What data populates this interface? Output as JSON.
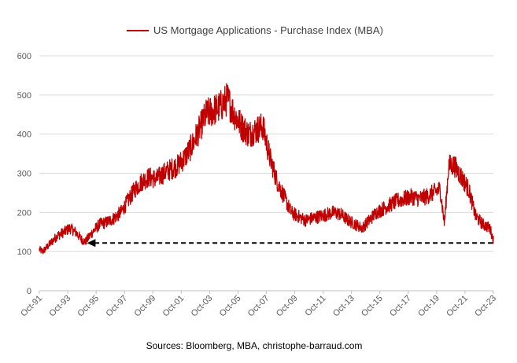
{
  "chart_data": {
    "type": "line",
    "title": "",
    "legend": {
      "label": "US Mortgage Applications - Purchase Index (MBA)",
      "placement": "top"
    },
    "xlabel": "",
    "ylabel": "",
    "ylim": [
      0,
      600
    ],
    "yticks": [
      0,
      100,
      200,
      300,
      400,
      500,
      600
    ],
    "xlim": [
      1991.75,
      2023.75
    ],
    "xtick_labels": [
      "Oct-91",
      "Oct-93",
      "Oct-95",
      "Oct-97",
      "Oct-99",
      "Oct-01",
      "Oct-03",
      "Oct-05",
      "Oct-07",
      "Oct-09",
      "Oct-11",
      "Oct-13",
      "Oct-15",
      "Oct-17",
      "Oct-19",
      "Oct-21",
      "Oct-23"
    ],
    "grid": "horizontal",
    "source": "Sources: Bloomberg, MBA, christophe-barraud.com",
    "colors": {
      "series": "#c00000",
      "grid": "#d9d9d9",
      "axis": "#bfbfbf",
      "arrow": "#000000"
    },
    "annotation": {
      "type": "dashed-arrow",
      "from_x": 2023.7,
      "to_x": 1995.1,
      "y": 122
    },
    "series": [
      {
        "name": "US Mortgage Applications - Purchase Index (MBA)",
        "x": [
          1991.75,
          1992.0,
          1992.5,
          1993.0,
          1993.5,
          1993.9,
          1994.3,
          1994.75,
          1995.0,
          1995.5,
          1996.0,
          1996.5,
          1997.0,
          1997.5,
          1998.0,
          1998.5,
          1999.0,
          1999.5,
          2000.0,
          2000.5,
          2001.0,
          2001.5,
          2002.0,
          2002.5,
          2003.0,
          2003.5,
          2004.0,
          2004.5,
          2005.0,
          2005.5,
          2006.0,
          2006.5,
          2007.0,
          2007.5,
          2008.0,
          2008.5,
          2009.0,
          2009.5,
          2010.0,
          2010.5,
          2011.0,
          2011.5,
          2012.0,
          2012.5,
          2013.0,
          2013.5,
          2014.0,
          2014.5,
          2015.0,
          2015.5,
          2016.0,
          2016.5,
          2017.0,
          2017.5,
          2018.0,
          2018.5,
          2019.0,
          2019.5,
          2020.0,
          2020.3,
          2020.6,
          2021.0,
          2021.5,
          2022.0,
          2022.5,
          2023.0,
          2023.5,
          2023.75
        ],
        "y": [
          105,
          100,
          120,
          140,
          150,
          160,
          150,
          130,
          125,
          150,
          170,
          175,
          185,
          200,
          230,
          260,
          280,
          290,
          285,
          300,
          310,
          320,
          340,
          370,
          410,
          450,
          460,
          470,
          490,
          450,
          420,
          400,
          410,
          420,
          340,
          280,
          240,
          200,
          190,
          180,
          185,
          190,
          195,
          200,
          195,
          180,
          170,
          160,
          180,
          200,
          210,
          220,
          230,
          235,
          240,
          235,
          240,
          250,
          260,
          170,
          320,
          320,
          290,
          260,
          190,
          170,
          160,
          130
        ]
      }
    ]
  }
}
